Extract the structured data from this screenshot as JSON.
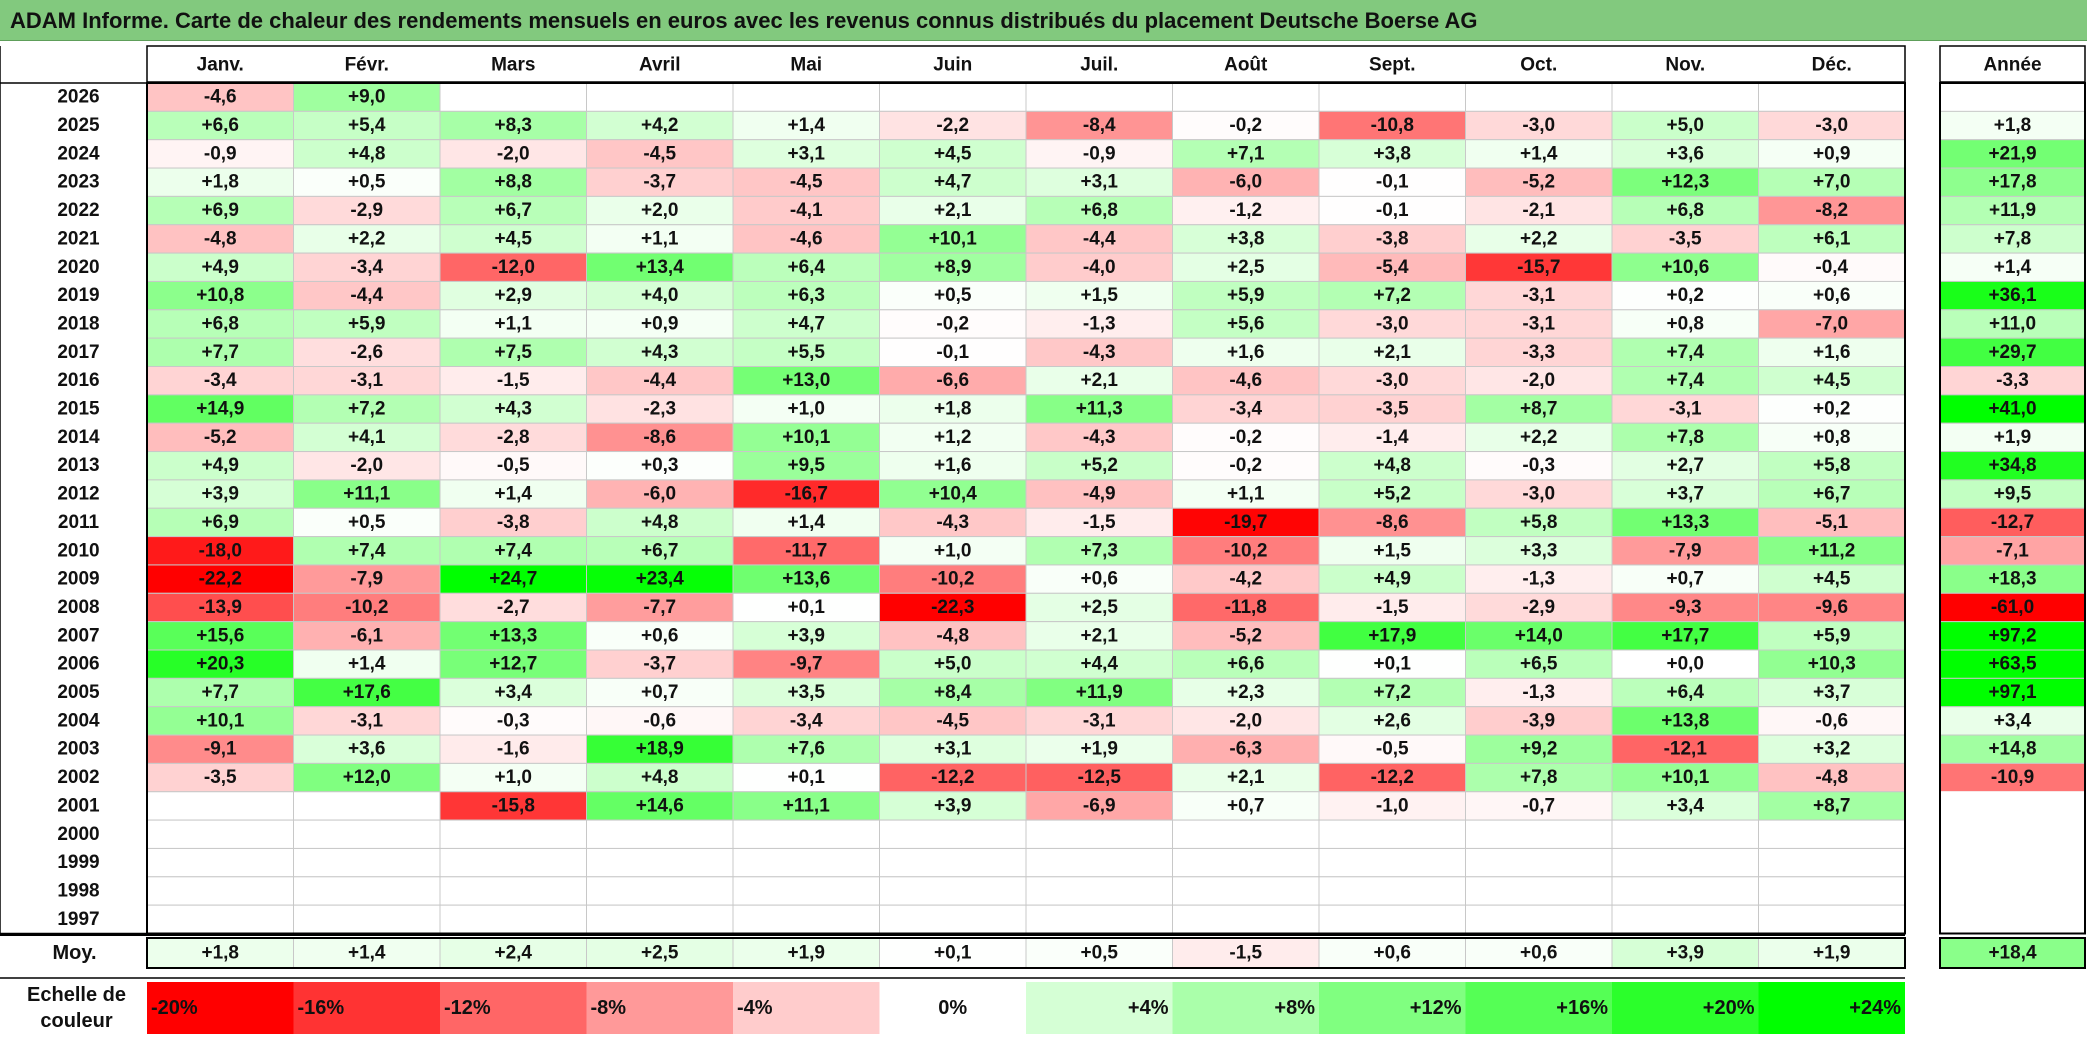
{
  "title": "ADAM Informe. Carte de chaleur des rendements mensuels en euros avec les revenus connus distribués du placement Deutsche Boerse AG",
  "chart_data": {
    "type": "heatmap",
    "title": "ADAM Informe. Carte de chaleur des rendements mensuels en euros avec les revenus connus distribués du placement Deutsche Boerse AG",
    "columns": [
      "Janv.",
      "Févr.",
      "Mars",
      "Avril",
      "Mai",
      "Juin",
      "Juil.",
      "Août",
      "Sept.",
      "Oct.",
      "Nov.",
      "Déc."
    ],
    "year_header": "Année",
    "rows": [
      {
        "year": "2026",
        "months": [
          "-4,6",
          "+9,0",
          "",
          "",
          "",
          "",
          "",
          "",
          "",
          "",
          "",
          ""
        ],
        "annual": ""
      },
      {
        "year": "2025",
        "months": [
          "+6,6",
          "+5,4",
          "+8,3",
          "+4,2",
          "+1,4",
          "-2,2",
          "-8,4",
          "-0,2",
          "-10,8",
          "-3,0",
          "+5,0",
          "-3,0"
        ],
        "annual": "+1,8"
      },
      {
        "year": "2024",
        "months": [
          "-0,9",
          "+4,8",
          "-2,0",
          "-4,5",
          "+3,1",
          "+4,5",
          "-0,9",
          "+7,1",
          "+3,8",
          "+1,4",
          "+3,6",
          "+0,9"
        ],
        "annual": "+21,9"
      },
      {
        "year": "2023",
        "months": [
          "+1,8",
          "+0,5",
          "+8,8",
          "-3,7",
          "-4,5",
          "+4,7",
          "+3,1",
          "-6,0",
          "-0,1",
          "-5,2",
          "+12,3",
          "+7,0"
        ],
        "annual": "+17,8"
      },
      {
        "year": "2022",
        "months": [
          "+6,9",
          "-2,9",
          "+6,7",
          "+2,0",
          "-4,1",
          "+2,1",
          "+6,8",
          "-1,2",
          "-0,1",
          "-2,1",
          "+6,8",
          "-8,2"
        ],
        "annual": "+11,9"
      },
      {
        "year": "2021",
        "months": [
          "-4,8",
          "+2,2",
          "+4,5",
          "+1,1",
          "-4,6",
          "+10,1",
          "-4,4",
          "+3,8",
          "-3,8",
          "+2,2",
          "-3,5",
          "+6,1"
        ],
        "annual": "+7,8"
      },
      {
        "year": "2020",
        "months": [
          "+4,9",
          "-3,4",
          "-12,0",
          "+13,4",
          "+6,4",
          "+8,9",
          "-4,0",
          "+2,5",
          "-5,4",
          "-15,7",
          "+10,6",
          "-0,4"
        ],
        "annual": "+1,4"
      },
      {
        "year": "2019",
        "months": [
          "+10,8",
          "-4,4",
          "+2,9",
          "+4,0",
          "+6,3",
          "+0,5",
          "+1,5",
          "+5,9",
          "+7,2",
          "-3,1",
          "+0,2",
          "+0,6"
        ],
        "annual": "+36,1"
      },
      {
        "year": "2018",
        "months": [
          "+6,8",
          "+5,9",
          "+1,1",
          "+0,9",
          "+4,7",
          "-0,2",
          "-1,3",
          "+5,6",
          "-3,0",
          "-3,1",
          "+0,8",
          "-7,0"
        ],
        "annual": "+11,0"
      },
      {
        "year": "2017",
        "months": [
          "+7,7",
          "-2,6",
          "+7,5",
          "+4,3",
          "+5,5",
          "-0,1",
          "-4,3",
          "+1,6",
          "+2,1",
          "-3,3",
          "+7,4",
          "+1,6"
        ],
        "annual": "+29,7"
      },
      {
        "year": "2016",
        "months": [
          "-3,4",
          "-3,1",
          "-1,5",
          "-4,4",
          "+13,0",
          "-6,6",
          "+2,1",
          "-4,6",
          "-3,0",
          "-2,0",
          "+7,4",
          "+4,5"
        ],
        "annual": "-3,3"
      },
      {
        "year": "2015",
        "months": [
          "+14,9",
          "+7,2",
          "+4,3",
          "-2,3",
          "+1,0",
          "+1,8",
          "+11,3",
          "-3,4",
          "-3,5",
          "+8,7",
          "-3,1",
          "+0,2"
        ],
        "annual": "+41,0"
      },
      {
        "year": "2014",
        "months": [
          "-5,2",
          "+4,1",
          "-2,8",
          "-8,6",
          "+10,1",
          "+1,2",
          "-4,3",
          "-0,2",
          "-1,4",
          "+2,2",
          "+7,8",
          "+0,8"
        ],
        "annual": "+1,9"
      },
      {
        "year": "2013",
        "months": [
          "+4,9",
          "-2,0",
          "-0,5",
          "+0,3",
          "+9,5",
          "+1,6",
          "+5,2",
          "-0,2",
          "+4,8",
          "-0,3",
          "+2,7",
          "+5,8"
        ],
        "annual": "+34,8"
      },
      {
        "year": "2012",
        "months": [
          "+3,9",
          "+11,1",
          "+1,4",
          "-6,0",
          "-16,7",
          "+10,4",
          "-4,9",
          "+1,1",
          "+5,2",
          "-3,0",
          "+3,7",
          "+6,7"
        ],
        "annual": "+9,5"
      },
      {
        "year": "2011",
        "months": [
          "+6,9",
          "+0,5",
          "-3,8",
          "+4,8",
          "+1,4",
          "-4,3",
          "-1,5",
          "-19,7",
          "-8,6",
          "+5,8",
          "+13,3",
          "-5,1"
        ],
        "annual": "-12,7"
      },
      {
        "year": "2010",
        "months": [
          "-18,0",
          "+7,4",
          "+7,4",
          "+6,7",
          "-11,7",
          "+1,0",
          "+7,3",
          "-10,2",
          "+1,5",
          "+3,3",
          "-7,9",
          "+11,2"
        ],
        "annual": "-7,1"
      },
      {
        "year": "2009",
        "months": [
          "-22,2",
          "-7,9",
          "+24,7",
          "+23,4",
          "+13,6",
          "-10,2",
          "+0,6",
          "-4,2",
          "+4,9",
          "-1,3",
          "+0,7",
          "+4,5"
        ],
        "annual": "+18,3"
      },
      {
        "year": "2008",
        "months": [
          "-13,9",
          "-10,2",
          "-2,7",
          "-7,7",
          "+0,1",
          "-22,3",
          "+2,5",
          "-11,8",
          "-1,5",
          "-2,9",
          "-9,3",
          "-9,6"
        ],
        "annual": "-61,0"
      },
      {
        "year": "2007",
        "months": [
          "+15,6",
          "-6,1",
          "+13,3",
          "+0,6",
          "+3,9",
          "-4,8",
          "+2,1",
          "-5,2",
          "+17,9",
          "+14,0",
          "+17,7",
          "+5,9"
        ],
        "annual": "+97,2"
      },
      {
        "year": "2006",
        "months": [
          "+20,3",
          "+1,4",
          "+12,7",
          "-3,7",
          "-9,7",
          "+5,0",
          "+4,4",
          "+6,6",
          "+0,1",
          "+6,5",
          "+0,0",
          "+10,3"
        ],
        "annual": "+63,5"
      },
      {
        "year": "2005",
        "months": [
          "+7,7",
          "+17,6",
          "+3,4",
          "+0,7",
          "+3,5",
          "+8,4",
          "+11,9",
          "+2,3",
          "+7,2",
          "-1,3",
          "+6,4",
          "+3,7"
        ],
        "annual": "+97,1"
      },
      {
        "year": "2004",
        "months": [
          "+10,1",
          "-3,1",
          "-0,3",
          "-0,6",
          "-3,4",
          "-4,5",
          "-3,1",
          "-2,0",
          "+2,6",
          "-3,9",
          "+13,8",
          "-0,6"
        ],
        "annual": "+3,4"
      },
      {
        "year": "2003",
        "months": [
          "-9,1",
          "+3,6",
          "-1,6",
          "+18,9",
          "+7,6",
          "+3,1",
          "+1,9",
          "-6,3",
          "-0,5",
          "+9,2",
          "-12,1",
          "+3,2"
        ],
        "annual": "+14,8"
      },
      {
        "year": "2002",
        "months": [
          "-3,5",
          "+12,0",
          "+1,0",
          "+4,8",
          "+0,1",
          "-12,2",
          "-12,5",
          "+2,1",
          "-12,2",
          "+7,8",
          "+10,1",
          "-4,8"
        ],
        "annual": "-10,9"
      },
      {
        "year": "2001",
        "months": [
          "",
          "",
          "-15,8",
          "+14,6",
          "+11,1",
          "+3,9",
          "-6,9",
          "+0,7",
          "-1,0",
          "-0,7",
          "+3,4",
          "+8,7"
        ],
        "annual": ""
      },
      {
        "year": "2000",
        "months": [
          "",
          "",
          "",
          "",
          "",
          "",
          "",
          "",
          "",
          "",
          "",
          ""
        ],
        "annual": ""
      },
      {
        "year": "1999",
        "months": [
          "",
          "",
          "",
          "",
          "",
          "",
          "",
          "",
          "",
          "",
          "",
          ""
        ],
        "annual": ""
      },
      {
        "year": "1998",
        "months": [
          "",
          "",
          "",
          "",
          "",
          "",
          "",
          "",
          "",
          "",
          "",
          ""
        ],
        "annual": ""
      },
      {
        "year": "1997",
        "months": [
          "",
          "",
          "",
          "",
          "",
          "",
          "",
          "",
          "",
          "",
          "",
          ""
        ],
        "annual": ""
      }
    ],
    "average": {
      "label": "Moy.",
      "months": [
        "+1,8",
        "+1,4",
        "+2,4",
        "+2,5",
        "+1,9",
        "+0,1",
        "+0,5",
        "-1,5",
        "+0,6",
        "+0,6",
        "+3,9",
        "+1,9"
      ],
      "annual": "+18,4"
    },
    "scale": {
      "label_line1": "Echelle de",
      "label_line2": "couleur",
      "steps": [
        {
          "label": "-20%",
          "value": -20
        },
        {
          "label": "-16%",
          "value": -16
        },
        {
          "label": "-12%",
          "value": -12
        },
        {
          "label": "-8%",
          "value": -8
        },
        {
          "label": "-4%",
          "value": -4
        },
        {
          "label": "0%",
          "value": 0
        },
        {
          "label": "+4%",
          "value": 4
        },
        {
          "label": "+8%",
          "value": 8
        },
        {
          "label": "+12%",
          "value": 12
        },
        {
          "label": "+16%",
          "value": 16
        },
        {
          "label": "+20%",
          "value": 20
        },
        {
          "label": "+24%",
          "value": 24
        }
      ]
    },
    "colors": {
      "negative_max": "#ff0000",
      "neutral": "#ffffff",
      "positive_max": "#00ff00",
      "title_background": "#82c97e"
    }
  }
}
